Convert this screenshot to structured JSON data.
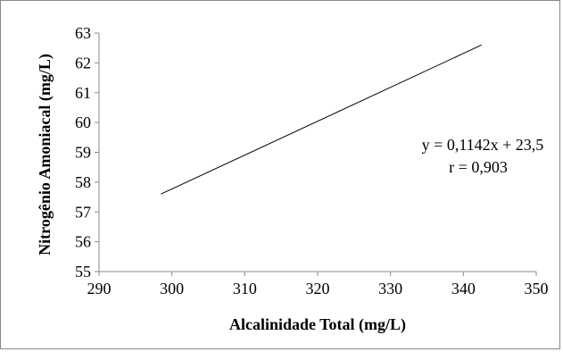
{
  "chart_data": {
    "type": "line",
    "title": "",
    "xlabel": "Alcalinidade Total (mg/L)",
    "ylabel": "Nitrogênio Amoniacal (mg/L)",
    "xlim": [
      290,
      350
    ],
    "ylim": [
      55,
      63
    ],
    "xticks": [
      "290",
      "300",
      "310",
      "320",
      "330",
      "340",
      "350"
    ],
    "yticks": [
      "55",
      "56",
      "57",
      "58",
      "59",
      "60",
      "61",
      "62",
      "63"
    ],
    "grid": false,
    "legend": "none",
    "series": [
      {
        "x": [
          298.5,
          342.5
        ],
        "y": [
          57.6,
          62.6
        ],
        "color": "#000000"
      }
    ],
    "annotations": [
      "y = 0,1142x + 23,5",
      "r = 0,903"
    ]
  }
}
